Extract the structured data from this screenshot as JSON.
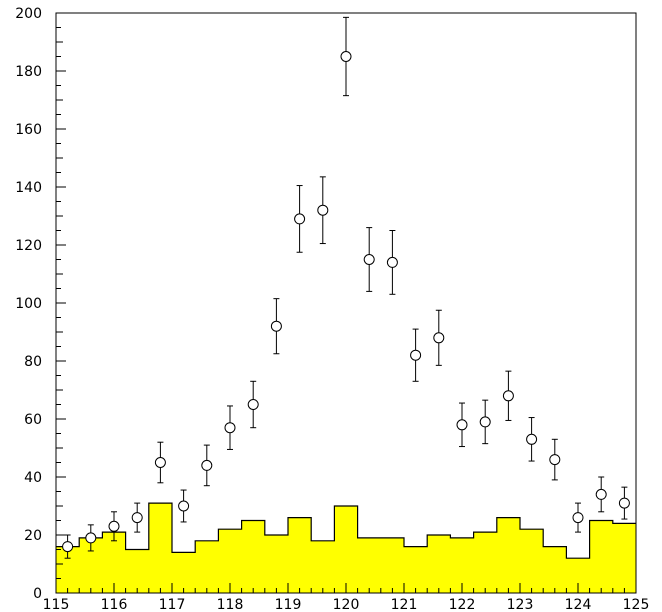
{
  "chart_data": {
    "type": "scatter",
    "title": "",
    "xlabel": "",
    "ylabel": "",
    "xlim": [
      115,
      125
    ],
    "ylim": [
      0,
      200
    ],
    "x_ticks": [
      115,
      116,
      117,
      118,
      119,
      120,
      121,
      122,
      123,
      124,
      125
    ],
    "y_ticks": [
      0,
      20,
      40,
      60,
      80,
      100,
      120,
      140,
      160,
      180,
      200
    ],
    "x_tick_labels": [
      "115",
      "116",
      "117",
      "118",
      "119",
      "120",
      "121",
      "122",
      "123",
      "124",
      "125"
    ],
    "y_tick_labels": [
      "0",
      "20",
      "40",
      "60",
      "80",
      "100",
      "120",
      "140",
      "160",
      "180",
      "200"
    ],
    "grid": false,
    "series": [
      {
        "kind": "points_with_errors",
        "marker": "open-circle",
        "color": "#000000",
        "points": [
          {
            "x": 115.2,
            "y": 16,
            "err": 4
          },
          {
            "x": 115.6,
            "y": 19,
            "err": 4.5
          },
          {
            "x": 116.0,
            "y": 23,
            "err": 5
          },
          {
            "x": 116.4,
            "y": 26,
            "err": 5
          },
          {
            "x": 116.8,
            "y": 45,
            "err": 7
          },
          {
            "x": 117.2,
            "y": 30,
            "err": 5.5
          },
          {
            "x": 117.6,
            "y": 44,
            "err": 7
          },
          {
            "x": 118.0,
            "y": 57,
            "err": 7.5
          },
          {
            "x": 118.4,
            "y": 65,
            "err": 8
          },
          {
            "x": 118.8,
            "y": 92,
            "err": 9.5
          },
          {
            "x": 119.2,
            "y": 129,
            "err": 11.5
          },
          {
            "x": 119.6,
            "y": 132,
            "err": 11.5
          },
          {
            "x": 120.0,
            "y": 185,
            "err": 13.5
          },
          {
            "x": 120.4,
            "y": 115,
            "err": 11
          },
          {
            "x": 120.8,
            "y": 114,
            "err": 11
          },
          {
            "x": 121.2,
            "y": 82,
            "err": 9
          },
          {
            "x": 121.6,
            "y": 88,
            "err": 9.5
          },
          {
            "x": 122.0,
            "y": 58,
            "err": 7.5
          },
          {
            "x": 122.4,
            "y": 59,
            "err": 7.5
          },
          {
            "x": 122.8,
            "y": 68,
            "err": 8.5
          },
          {
            "x": 123.2,
            "y": 53,
            "err": 7.5
          },
          {
            "x": 123.6,
            "y": 46,
            "err": 7
          },
          {
            "x": 124.0,
            "y": 26,
            "err": 5
          },
          {
            "x": 124.4,
            "y": 34,
            "err": 6
          },
          {
            "x": 124.8,
            "y": 31,
            "err": 5.5
          }
        ]
      },
      {
        "kind": "step_histogram",
        "fill": "#ffff00",
        "stroke": "#000000",
        "bin_edges": [
          115.0,
          115.4,
          115.8,
          116.2,
          116.6,
          117.0,
          117.4,
          117.8,
          118.2,
          118.6,
          119.0,
          119.4,
          119.8,
          120.2,
          120.6,
          121.0,
          121.4,
          121.8,
          122.2,
          122.6,
          123.0,
          123.4,
          123.8,
          124.2,
          124.6,
          125.0
        ],
        "values": [
          16,
          19,
          21,
          15,
          31,
          14,
          18,
          22,
          25,
          20,
          26,
          18,
          30,
          19,
          19,
          16,
          20,
          19,
          21,
          26,
          22,
          16,
          12,
          25,
          24
        ]
      }
    ]
  }
}
